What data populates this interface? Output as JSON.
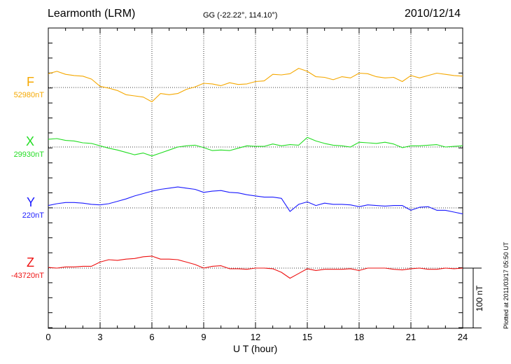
{
  "header": {
    "station": "Learmonth (LRM)",
    "coords": "GG (-22.22°, 114.10°)",
    "date": "2010/12/14"
  },
  "chart_data": {
    "type": "line",
    "xlabel": "U T (hour)",
    "xlim": [
      0,
      24
    ],
    "xticks": [
      "0",
      "3",
      "6",
      "9",
      "12",
      "15",
      "18",
      "21",
      "24"
    ],
    "grid": true,
    "y_unit": "nT",
    "scale_bar": "100 nT",
    "series": [
      {
        "name": "F",
        "baseline_label": "52980nT",
        "baseline": 52980,
        "color": "#f5a800",
        "x": [
          0,
          0.5,
          1,
          1.5,
          2,
          2.5,
          3,
          3.5,
          4,
          4.5,
          5,
          5.5,
          6,
          6.5,
          7,
          7.5,
          8,
          8.5,
          9,
          9.5,
          10,
          10.5,
          11,
          11.5,
          12,
          12.5,
          13,
          13.5,
          14,
          14.5,
          15,
          15.5,
          16,
          16.5,
          17,
          17.5,
          18,
          18.5,
          19,
          19.5,
          20,
          20.5,
          21,
          21.5,
          22,
          22.5,
          23,
          23.5,
          24
        ],
        "values": [
          53003,
          53007,
          53002,
          53000,
          52999,
          52994,
          52982,
          52979,
          52975,
          52968,
          52966,
          52964,
          52956,
          52970,
          52968,
          52970,
          52977,
          52981,
          52987,
          52986,
          52983,
          52988,
          52985,
          52986,
          52990,
          52991,
          53002,
          53001,
          53003,
          53012,
          53007,
          52998,
          52997,
          52993,
          52998,
          52996,
          53004,
          53003,
          52998,
          52996,
          52997,
          52990,
          53000,
          52996,
          53000,
          53004,
          53002,
          53000,
          52999
        ]
      },
      {
        "name": "X",
        "baseline_label": "29930nT",
        "baseline": 29930,
        "color": "#22dd22",
        "x": [
          0,
          0.5,
          1,
          1.5,
          2,
          2.5,
          3,
          3.5,
          4,
          4.5,
          5,
          5.5,
          6,
          6.5,
          7,
          7.5,
          8,
          8.5,
          9,
          9.5,
          10,
          10.5,
          11,
          11.5,
          12,
          12.5,
          13,
          13.5,
          14,
          14.5,
          15,
          15.5,
          16,
          16.5,
          17,
          17.5,
          18,
          18.5,
          19,
          19.5,
          20,
          20.5,
          21,
          21.5,
          22,
          22.5,
          23,
          23.5,
          24
        ],
        "values": [
          29943,
          29944,
          29941,
          29940,
          29937,
          29936,
          29932,
          29928,
          29925,
          29921,
          29917,
          29920,
          29915,
          29920,
          29925,
          29930,
          29932,
          29933,
          29929,
          29924,
          29925,
          29924,
          29928,
          29932,
          29931,
          29931,
          29935,
          29932,
          29934,
          29933,
          29946,
          29940,
          29936,
          29933,
          29932,
          29930,
          29938,
          29937,
          29936,
          29938,
          29935,
          29929,
          29932,
          29932,
          29933,
          29934,
          29930,
          29931,
          29932
        ]
      },
      {
        "name": "Y",
        "baseline_label": "220nT",
        "baseline": 220,
        "color": "#1a1aff",
        "x": [
          0,
          0.5,
          1,
          1.5,
          2,
          2.5,
          3,
          3.5,
          4,
          4.5,
          5,
          5.5,
          6,
          6.5,
          7,
          7.5,
          8,
          8.5,
          9,
          9.5,
          10,
          10.5,
          11,
          11.5,
          12,
          12.5,
          13,
          13.5,
          14,
          14.5,
          15,
          15.5,
          16,
          16.5,
          17,
          17.5,
          18,
          18.5,
          19,
          19.5,
          20,
          20.5,
          21,
          21.5,
          22,
          22.5,
          23,
          23.5,
          24
        ],
        "values": [
          224,
          227,
          229,
          229,
          228,
          226,
          225,
          227,
          231,
          235,
          240,
          244,
          248,
          251,
          253,
          255,
          253,
          251,
          246,
          248,
          249,
          246,
          245,
          242,
          240,
          238,
          238,
          236,
          214,
          226,
          230,
          224,
          228,
          226,
          226,
          225,
          222,
          225,
          224,
          223,
          224,
          224,
          216,
          221,
          222,
          216,
          216,
          213,
          210
        ]
      },
      {
        "name": "Z",
        "baseline_label": "-43720nT",
        "baseline": -43720,
        "color": "#ee1111",
        "x": [
          0,
          0.5,
          1,
          1.5,
          2,
          2.5,
          3,
          3.5,
          4,
          4.5,
          5,
          5.5,
          6,
          6.5,
          7,
          7.5,
          8,
          8.5,
          9,
          9.5,
          10,
          10.5,
          11,
          11.5,
          12,
          12.5,
          13,
          13.5,
          14,
          14.5,
          15,
          15.5,
          16,
          16.5,
          17,
          17.5,
          18,
          18.5,
          19,
          19.5,
          20,
          20.5,
          21,
          21.5,
          22,
          22.5,
          23,
          23.5,
          24
        ],
        "values": [
          -43719,
          -43720,
          -43718,
          -43718,
          -43717,
          -43717,
          -43710,
          -43706,
          -43707,
          -43705,
          -43704,
          -43701,
          -43700,
          -43705,
          -43705,
          -43706,
          -43710,
          -43714,
          -43720,
          -43717,
          -43716,
          -43721,
          -43721,
          -43722,
          -43720,
          -43720,
          -43721,
          -43727,
          -43737,
          -43729,
          -43721,
          -43724,
          -43722,
          -43722,
          -43722,
          -43721,
          -43724,
          -43720,
          -43720,
          -43720,
          -43722,
          -43723,
          -43721,
          -43720,
          -43722,
          -43722,
          -43720,
          -43721,
          -43720
        ]
      }
    ]
  },
  "footer": {
    "plotted_at": "Plotted at 2011/03/17 05:50 UT"
  }
}
